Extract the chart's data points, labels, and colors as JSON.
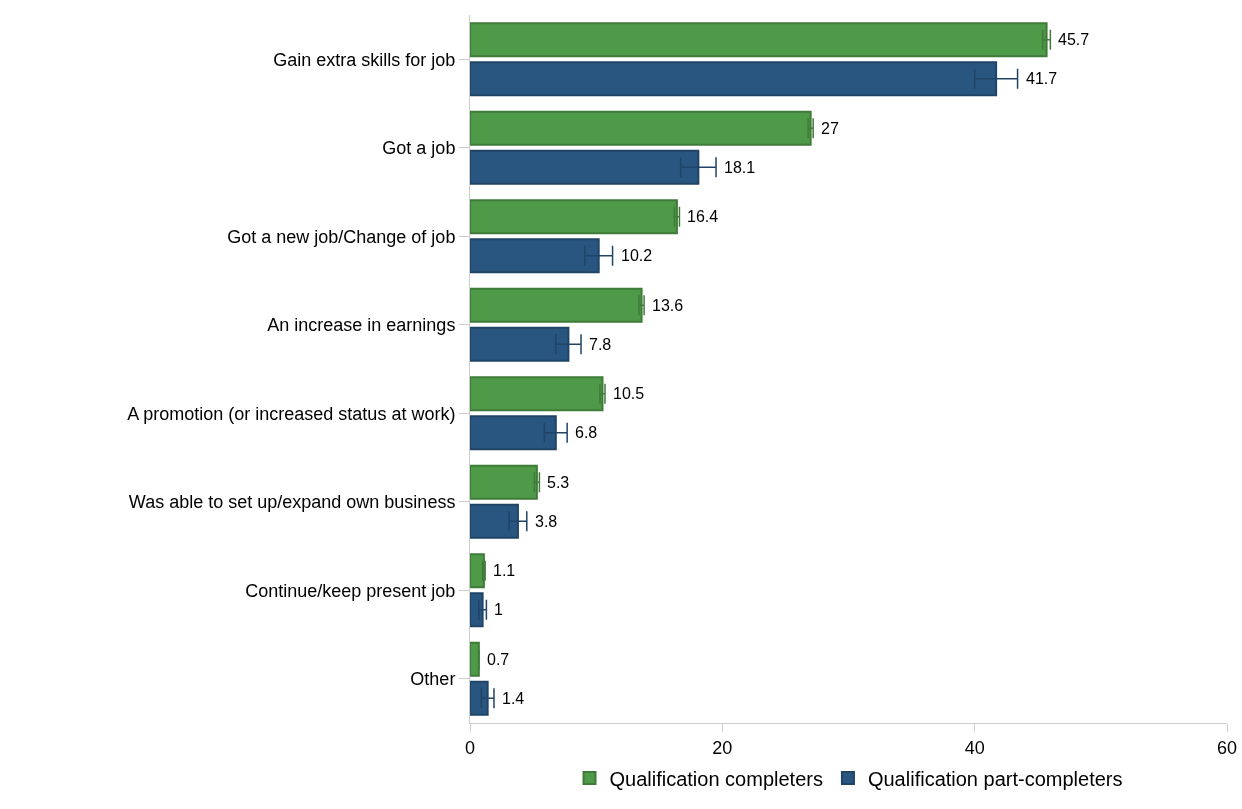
{
  "chart_data": {
    "type": "bar",
    "orientation": "horizontal",
    "categories": [
      "Gain extra skills for job",
      "Got a job",
      "Got a new job/Change of job",
      "An increase in earnings",
      "A promotion (or increased status at work)",
      "Was able to set up/expand own business",
      "Continue/keep present job",
      "Other"
    ],
    "series": [
      {
        "name": "Qualification completers",
        "color": "#4f9a48",
        "values": [
          45.7,
          27,
          16.4,
          13.6,
          10.5,
          5.3,
          1.1,
          0.7
        ],
        "errors": [
          0.3,
          0.2,
          0.2,
          0.2,
          0.2,
          0.2,
          0.1,
          null
        ]
      },
      {
        "name": "Qualification part-completers",
        "color": "#295680",
        "values": [
          41.7,
          18.1,
          10.2,
          7.8,
          6.8,
          3.8,
          1,
          1.4
        ],
        "errors": [
          1.7,
          1.4,
          1.1,
          1.0,
          0.9,
          0.7,
          0.3,
          0.5
        ]
      }
    ],
    "xlim": [
      0,
      60
    ],
    "xticks": [
      0,
      20,
      40,
      60
    ],
    "data_labels": true,
    "grid": false,
    "legend": "bottom"
  }
}
